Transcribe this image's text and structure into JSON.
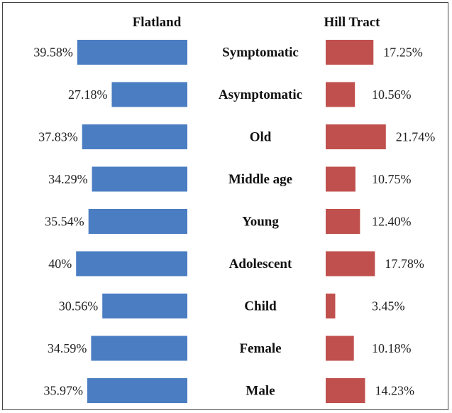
{
  "chart_data": {
    "type": "bar",
    "categories": [
      "Symptomatic",
      "Asymptomatic",
      "Old",
      "Middle age",
      "Young",
      "Adolescent",
      "Child",
      "Female",
      "Male"
    ],
    "series": [
      {
        "name": "Flatland",
        "values": [
          39.58,
          27.18,
          37.83,
          34.29,
          35.54,
          40,
          30.56,
          34.59,
          35.97
        ],
        "labels": [
          "39.58%",
          "27.18%",
          "37.83%",
          "34.29%",
          "35.54%",
          "40%",
          "30.56%",
          "34.59%",
          "35.97%"
        ],
        "color": "#4a7dc2"
      },
      {
        "name": "Hill Tract",
        "values": [
          17.25,
          10.56,
          21.74,
          10.75,
          12.4,
          17.78,
          3.45,
          10.18,
          14.23
        ],
        "labels": [
          "17.25%",
          "10.56%",
          "21.74%",
          "10.75%",
          "12.40%",
          "17.78%",
          "3.45%",
          "10.18%",
          "14.23%"
        ],
        "color": "#c0504d"
      }
    ],
    "orientation": "horizontal-butterfly",
    "grid": false
  }
}
